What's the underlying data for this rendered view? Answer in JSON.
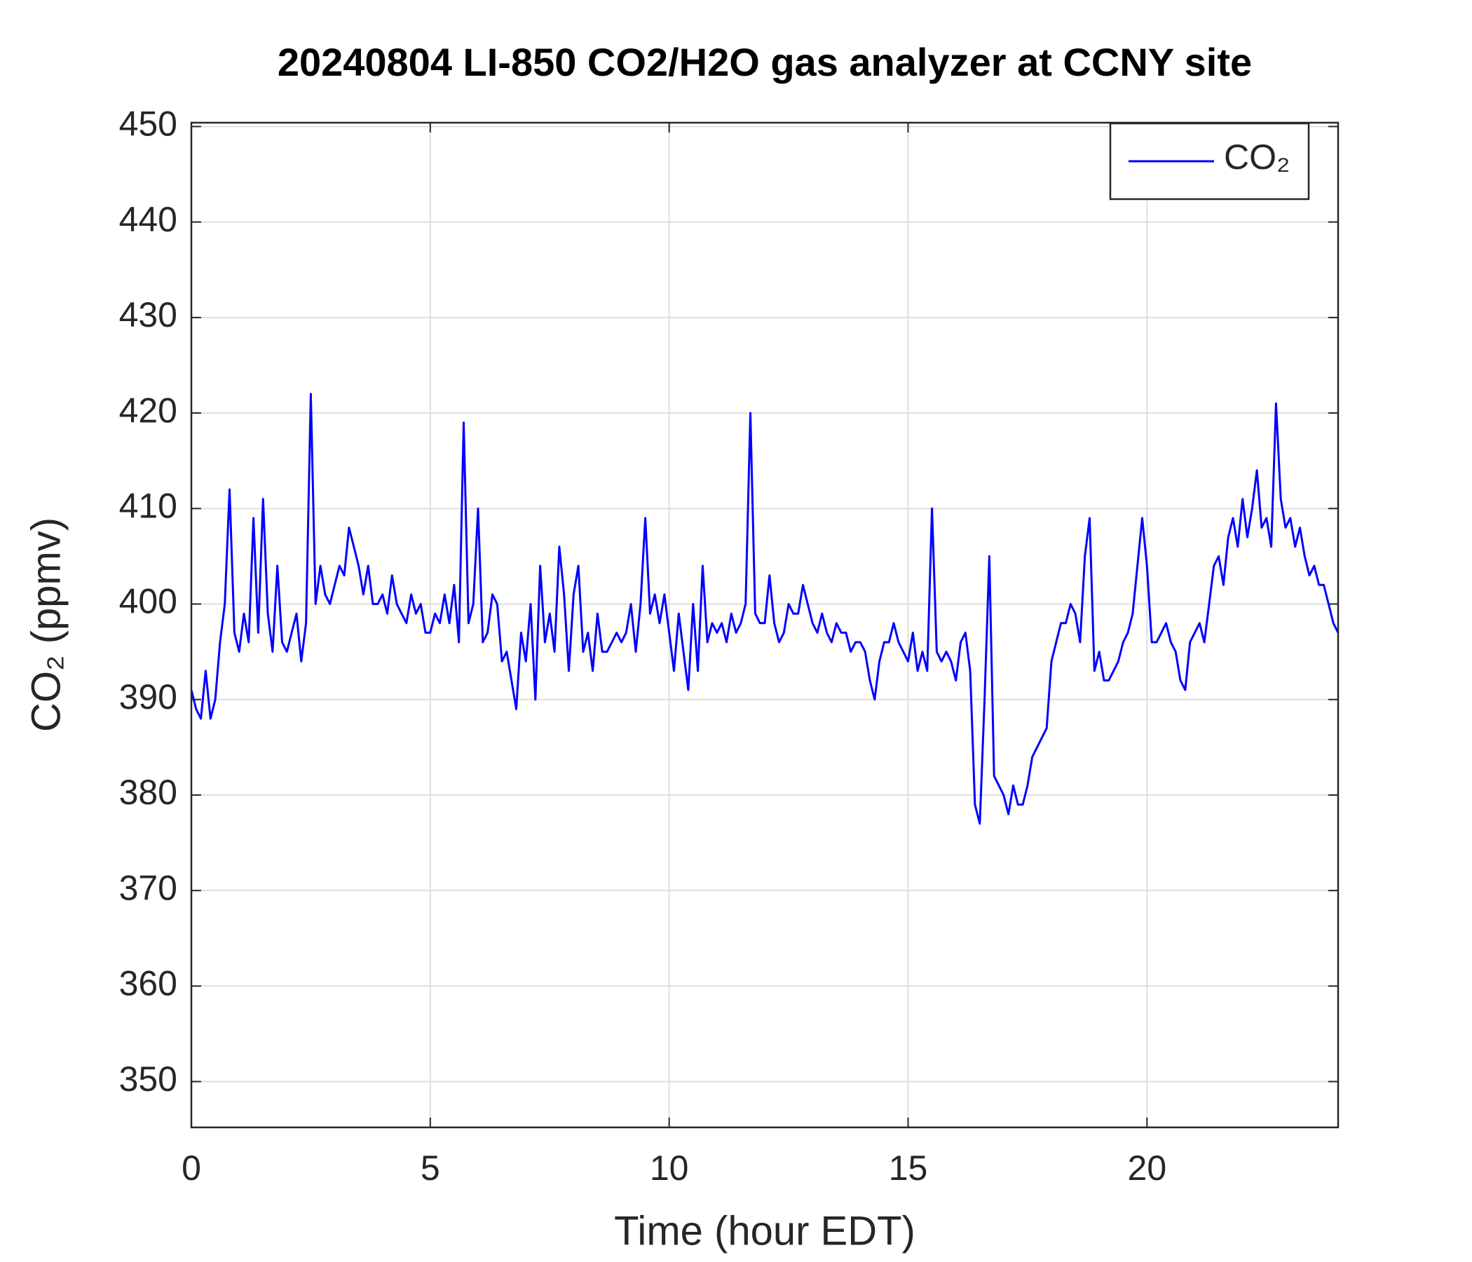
{
  "chart_data": {
    "type": "line",
    "title": "20240804 LI-850 CO2/H2O gas analyzer at CCNY site",
    "x_label": "Time (hour EDT)",
    "y_label": "CO₂ (ppmv)",
    "x": [
      0,
      0.1,
      0.2,
      0.3,
      0.4,
      0.5,
      0.6,
      0.7,
      0.8,
      0.9,
      1,
      1.1,
      1.2,
      1.3,
      1.4,
      1.5,
      1.6,
      1.7,
      1.8,
      1.9,
      2,
      2.1,
      2.2,
      2.3,
      2.4,
      2.5,
      2.6,
      2.7,
      2.8,
      2.9,
      3,
      3.1,
      3.2,
      3.3,
      3.4,
      3.5,
      3.6,
      3.7,
      3.8,
      3.9,
      4,
      4.1,
      4.2,
      4.3,
      4.4,
      4.5,
      4.6,
      4.7,
      4.8,
      4.9,
      5,
      5.1,
      5.2,
      5.3,
      5.4,
      5.5,
      5.6,
      5.7,
      5.8,
      5.9,
      6,
      6.1,
      6.2,
      6.3,
      6.4,
      6.5,
      6.6,
      6.7,
      6.8,
      6.9,
      7,
      7.1,
      7.2,
      7.3,
      7.4,
      7.5,
      7.6,
      7.7,
      7.8,
      7.9,
      8,
      8.1,
      8.2,
      8.3,
      8.4,
      8.5,
      8.6,
      8.7,
      8.8,
      8.9,
      9,
      9.1,
      9.2,
      9.3,
      9.4,
      9.5,
      9.6,
      9.7,
      9.8,
      9.9,
      10,
      10.1,
      10.2,
      10.3,
      10.4,
      10.5,
      10.6,
      10.7,
      10.8,
      10.9,
      11,
      11.1,
      11.2,
      11.3,
      11.4,
      11.5,
      11.6,
      11.7,
      11.8,
      11.9,
      12,
      12.1,
      12.2,
      12.3,
      12.4,
      12.5,
      12.6,
      12.7,
      12.8,
      12.9,
      13,
      13.1,
      13.2,
      13.3,
      13.4,
      13.5,
      13.6,
      13.7,
      13.8,
      13.9,
      14,
      14.1,
      14.2,
      14.3,
      14.4,
      14.5,
      14.6,
      14.7,
      14.8,
      14.9,
      15,
      15.1,
      15.2,
      15.3,
      15.4,
      15.5,
      15.6,
      15.7,
      15.8,
      15.9,
      16,
      16.1,
      16.2,
      16.3,
      16.4,
      16.5,
      16.6,
      16.7,
      16.8,
      16.9,
      17,
      17.1,
      17.2,
      17.3,
      17.4,
      17.5,
      17.6,
      17.7,
      17.8,
      17.9,
      18,
      18.1,
      18.2,
      18.3,
      18.4,
      18.5,
      18.6,
      18.7,
      18.8,
      18.9,
      19,
      19.1,
      19.2,
      19.3,
      19.4,
      19.5,
      19.6,
      19.7,
      19.8,
      19.9,
      20,
      20.1,
      20.2,
      20.3,
      20.4,
      20.5,
      20.6,
      20.7,
      20.8,
      20.9,
      21,
      21.1,
      21.2,
      21.3,
      21.4,
      21.5,
      21.6,
      21.7,
      21.8,
      21.9,
      22,
      22.1,
      22.2,
      22.3,
      22.4,
      22.5,
      22.6,
      22.7,
      22.8,
      22.9,
      23,
      23.1,
      23.2,
      23.3,
      23.4,
      23.5,
      23.6,
      23.7,
      23.8,
      23.9,
      24
    ],
    "series": [
      {
        "name": "CO₂",
        "color": "#0000ff",
        "values": [
          391,
          389,
          388,
          393,
          388,
          390,
          396,
          400,
          412,
          397,
          395,
          399,
          396,
          409,
          397,
          411,
          399,
          395,
          404,
          396,
          395,
          397,
          399,
          394,
          398,
          422,
          400,
          404,
          401,
          400,
          402,
          404,
          403,
          408,
          406,
          404,
          401,
          404,
          400,
          400,
          401,
          399,
          403,
          400,
          399,
          398,
          401,
          399,
          400,
          397,
          397,
          399,
          398,
          401,
          398,
          402,
          396,
          419,
          398,
          400,
          410,
          396,
          397,
          401,
          400,
          394,
          395,
          392,
          389,
          397,
          394,
          400,
          390,
          404,
          396,
          399,
          395,
          406,
          401,
          393,
          401,
          404,
          395,
          397,
          393,
          399,
          395,
          395,
          396,
          397,
          396,
          397,
          400,
          395,
          400,
          409,
          399,
          401,
          398,
          401,
          397,
          393,
          399,
          395,
          391,
          400,
          393,
          404,
          396,
          398,
          397,
          398,
          396,
          399,
          397,
          398,
          400,
          420,
          399,
          398,
          398,
          403,
          398,
          396,
          397,
          400,
          399,
          399,
          402,
          400,
          398,
          397,
          399,
          397,
          396,
          398,
          397,
          397,
          395,
          396,
          396,
          395,
          392,
          390,
          394,
          396,
          396,
          398,
          396,
          395,
          394,
          397,
          393,
          395,
          393,
          410,
          395,
          394,
          395,
          394,
          392,
          396,
          397,
          393,
          379,
          377,
          390,
          405,
          382,
          381,
          380,
          378,
          381,
          379,
          379,
          381,
          384,
          385,
          386,
          387,
          394,
          396,
          398,
          398,
          400,
          399,
          396,
          405,
          409,
          393,
          395,
          392,
          392,
          393,
          394,
          396,
          397,
          399,
          404,
          409,
          404,
          396,
          396,
          397,
          398,
          396,
          395,
          392,
          391,
          396,
          397,
          398,
          396,
          400,
          404,
          405,
          402,
          407,
          409,
          406,
          411,
          407,
          410,
          414,
          408,
          409,
          406,
          421,
          411,
          408,
          409,
          406,
          408,
          405,
          403,
          404,
          402,
          402,
          400,
          398,
          397
        ]
      }
    ],
    "xlim": [
      0,
      24
    ],
    "xticks": [
      0,
      5,
      10,
      15,
      20
    ],
    "ylim": [
      345.2,
      450.4
    ],
    "yticks": [
      350,
      360,
      370,
      380,
      390,
      400,
      410,
      420,
      430,
      440,
      450
    ],
    "grid": true,
    "legend": "upper right"
  }
}
